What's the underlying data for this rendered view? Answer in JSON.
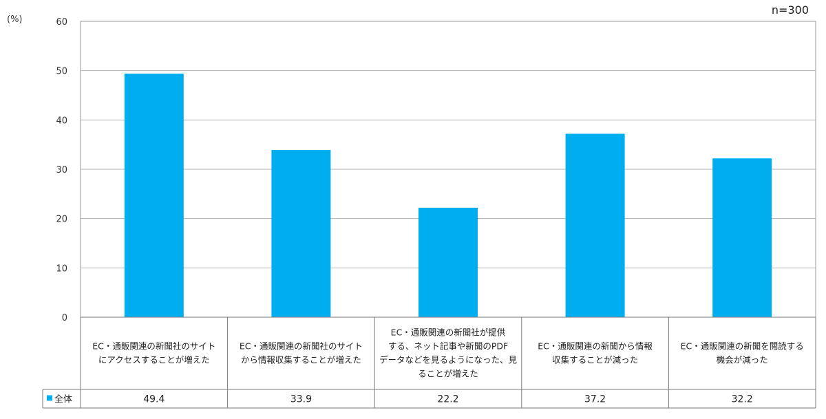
{
  "chart_data": {
    "type": "bar",
    "unit_label": "(%)",
    "sample_label": "n=300",
    "ylim": [
      0,
      60
    ],
    "yticks": [
      0,
      10,
      20,
      30,
      40,
      50,
      60
    ],
    "grid": true,
    "categories": [
      [
        "EC・通販関連の新聞社のサイト",
        "にアクセスすることが増えた"
      ],
      [
        "EC・通販関連の新聞社のサイト",
        "から情報収集することが増えた"
      ],
      [
        "EC・通販関連の新聞社が提供",
        "する、ネット記事や新聞のPDF",
        "データなどを見るようになった、見",
        "ることが増えた"
      ],
      [
        "EC・通販関連の新聞から情報",
        "収集することが減った"
      ],
      [
        "EC・通販関連の新聞を閲読する",
        "機会が減った"
      ]
    ],
    "series": [
      {
        "name": "全体",
        "color": "#00aeef",
        "values": [
          49.4,
          33.9,
          22.2,
          37.2,
          32.2
        ]
      }
    ],
    "legend_position": "data-table"
  }
}
